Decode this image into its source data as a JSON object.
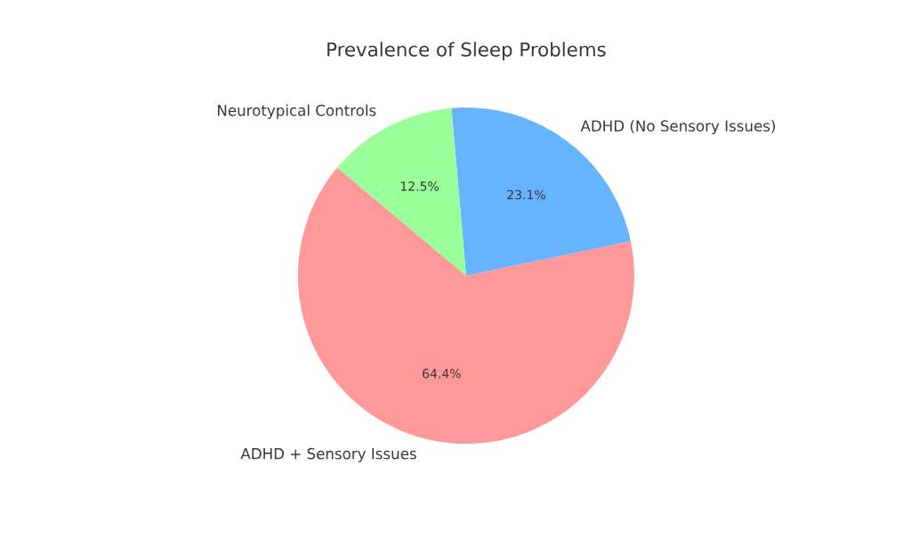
{
  "chart_data": {
    "type": "pie",
    "title": "Prevalence of Sleep Problems",
    "categories": [
      "ADHD + Sensory Issues",
      "ADHD (No Sensory Issues)",
      "Neurotypical Controls"
    ],
    "values": [
      64.4,
      23.1,
      12.5
    ],
    "colors": [
      "#ff9999",
      "#66b3ff",
      "#99ff99"
    ],
    "value_labels": [
      "64.4%",
      "23.1%",
      "12.5%"
    ]
  }
}
